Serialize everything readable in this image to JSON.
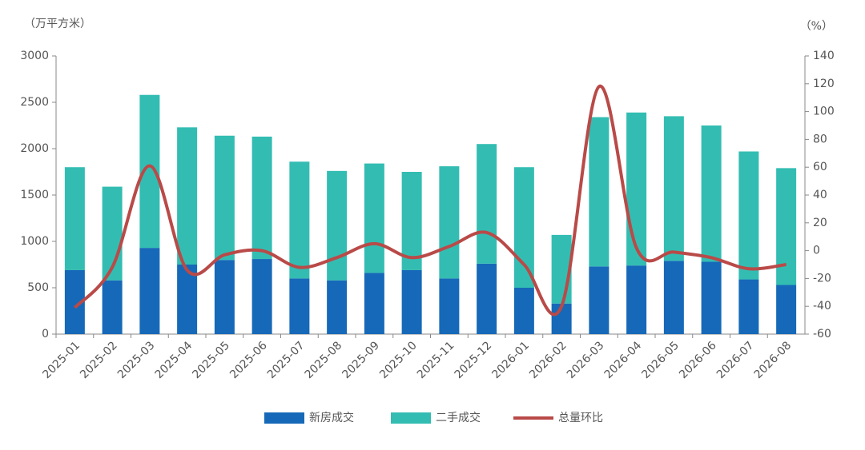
{
  "chart_data": {
    "type": "bar-line",
    "y_label": "（万平方米）",
    "y2_label": "（%）",
    "categories": [
      "2025-01",
      "2025-02",
      "2025-03",
      "2025-04",
      "2025-05",
      "2025-06",
      "2025-07",
      "2025-08",
      "2025-09",
      "2025-10",
      "2025-11",
      "2025-12",
      "2026-01",
      "2026-02",
      "2026-03",
      "2026-04",
      "2026-05",
      "2026-06",
      "2026-07",
      "2026-08"
    ],
    "series": [
      {
        "name": "新房成交",
        "color": "#1669b8",
        "type": "bar",
        "values": [
          690,
          580,
          930,
          750,
          800,
          810,
          600,
          580,
          660,
          690,
          600,
          760,
          500,
          330,
          730,
          740,
          790,
          780,
          590,
          530
        ]
      },
      {
        "name": "二手成交",
        "color": "#33bdb2",
        "type": "bar",
        "values": [
          1110,
          1010,
          1650,
          1480,
          1340,
          1320,
          1260,
          1180,
          1180,
          1060,
          1210,
          1290,
          1300,
          740,
          1610,
          1650,
          1560,
          1470,
          1380,
          1260
        ]
      },
      {
        "name": "总量环比",
        "color": "#b94a48",
        "type": "line",
        "axis": "y2",
        "values": [
          -41,
          -12,
          61,
          -14,
          -3,
          0,
          -12,
          -5,
          5,
          -5,
          3,
          13,
          -10,
          -40,
          118,
          2,
          -1,
          -5,
          -13,
          -10
        ]
      }
    ],
    "ylim": [
      0,
      3000
    ],
    "yticks": [
      0,
      500,
      1000,
      1500,
      2000,
      2500,
      3000
    ],
    "y2lim": [
      -60,
      140
    ],
    "y2ticks": [
      -60,
      -40,
      -20,
      0,
      20,
      40,
      60,
      80,
      100,
      120,
      140
    ],
    "stacked": true,
    "grid": false,
    "legend": "bottom"
  }
}
